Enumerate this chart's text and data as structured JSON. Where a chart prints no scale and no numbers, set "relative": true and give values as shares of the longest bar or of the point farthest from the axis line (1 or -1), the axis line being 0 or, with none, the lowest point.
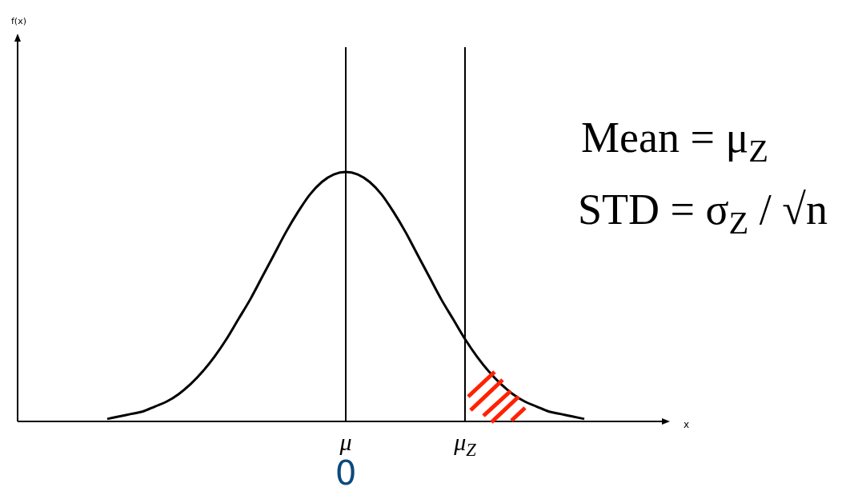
{
  "chart_data": {
    "type": "line",
    "relative": true,
    "categories": [
      null,
      null,
      null,
      null,
      null,
      null,
      null,
      null,
      null,
      null,
      null,
      null,
      null,
      null,
      null,
      null,
      null,
      null,
      null,
      null,
      "μ",
      null,
      null,
      null,
      null,
      null,
      null,
      null,
      null,
      null,
      "μ$_{Z}$",
      null,
      null,
      null,
      null,
      null,
      null,
      null,
      null,
      null,
      null
    ],
    "series": [
      {
        "color": "#000000",
        "values": [
          0.01,
          0.02,
          0.03,
          0.04,
          0.06,
          0.08,
          0.11,
          0.15,
          0.2,
          0.26,
          0.33,
          0.41,
          0.49,
          0.58,
          0.67,
          0.76,
          0.84,
          0.91,
          0.96,
          0.99,
          1,
          0.99,
          0.96,
          0.91,
          0.84,
          0.76,
          0.67,
          0.58,
          0.49,
          0.41,
          0.33,
          0.26,
          0.2,
          0.15,
          0.11,
          0.08,
          0.06,
          0.04,
          0.03,
          0.02,
          0.01
        ]
      }
    ],
    "ref_lines": [
      {
        "axis": "x",
        "value": "μ",
        "color": "#000000"
      },
      {
        "axis": "x",
        "value": "μ$_{Z}$",
        "color": "#000000"
      }
    ],
    "annotations": [
      "f(x)",
      "x",
      "0",
      "Mean = μ$_{Z}$",
      "STD = σ$_{Z}$ / √n"
    ]
  }
}
